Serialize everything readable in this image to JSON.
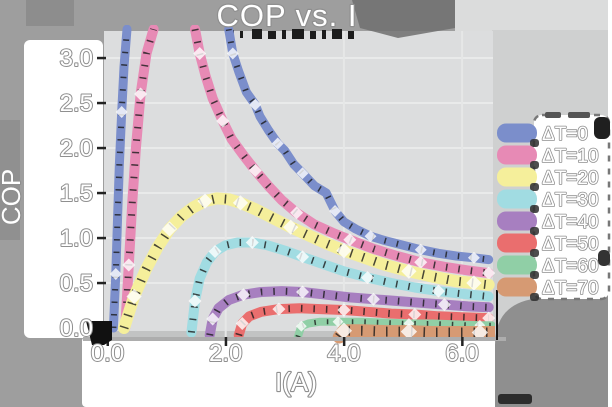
{
  "figure": {
    "title": "COP vs. I",
    "x_axis_label": "I(A)",
    "y_axis_label": "COP"
  },
  "chart_data": {
    "type": "line",
    "title": "COP vs. I",
    "xlabel": "I(A)",
    "ylabel": "COP",
    "xlim": [
      -0.05,
      6.55
    ],
    "ylim": [
      -0.12,
      3.35
    ],
    "grid": true,
    "legend_position": "right",
    "xticks": {
      "values": [
        0,
        2,
        4,
        6
      ],
      "labels": [
        "0.0",
        "2.0",
        "4.0",
        "6.0"
      ]
    },
    "yticks": {
      "values": [
        0,
        0.5,
        1,
        1.5,
        2,
        2.5,
        3
      ],
      "labels": [
        "0.0",
        "0.5",
        "1.0",
        "1.5",
        "2.0",
        "2.5",
        "3.0"
      ]
    },
    "gridx": [
      2,
      4,
      6
    ],
    "gridy": [
      0.5,
      1,
      1.5,
      2,
      2.5,
      3
    ],
    "note": "COP curves with error bands; ΔT=0 and ΔT=10 exceed the top of the axes between their rising and falling branches",
    "series": [
      {
        "name": "ΔT=0",
        "color": "#7b8ecb",
        "band_width": 9,
        "segments": [
          [
            [
              0.1,
              0.0
            ],
            [
              0.14,
              0.6
            ],
            [
              0.17,
              1.2
            ],
            [
              0.2,
              1.8
            ],
            [
              0.24,
              2.4
            ],
            [
              0.28,
              2.9
            ],
            [
              0.33,
              3.32
            ]
          ],
          [
            [
              2.05,
              3.32
            ],
            [
              2.12,
              3.05
            ],
            [
              2.22,
              2.85
            ],
            [
              2.35,
              2.62
            ],
            [
              2.5,
              2.48
            ],
            [
              2.58,
              2.35
            ],
            [
              2.72,
              2.2
            ],
            [
              2.88,
              2.05
            ],
            [
              3.0,
              1.97
            ],
            [
              3.15,
              1.82
            ],
            [
              3.3,
              1.72
            ],
            [
              3.5,
              1.58
            ],
            [
              3.7,
              1.5
            ],
            [
              3.85,
              1.3
            ],
            [
              4.0,
              1.18
            ],
            [
              4.2,
              1.1
            ],
            [
              4.45,
              1.02
            ],
            [
              4.7,
              0.97
            ],
            [
              5.0,
              0.92
            ],
            [
              5.3,
              0.87
            ],
            [
              5.6,
              0.83
            ],
            [
              5.9,
              0.8
            ],
            [
              6.2,
              0.78
            ],
            [
              6.45,
              0.76
            ]
          ]
        ]
      },
      {
        "name": "ΔT=10",
        "color": "#e78ab5",
        "band_width": 10,
        "segments": [
          [
            [
              0.3,
              0.0
            ],
            [
              0.36,
              0.7
            ],
            [
              0.42,
              1.4
            ],
            [
              0.48,
              2.0
            ],
            [
              0.56,
              2.6
            ],
            [
              0.66,
              3.05
            ],
            [
              0.78,
              3.32
            ]
          ],
          [
            [
              1.48,
              3.32
            ],
            [
              1.56,
              3.05
            ],
            [
              1.66,
              2.8
            ],
            [
              1.78,
              2.55
            ],
            [
              1.95,
              2.3
            ],
            [
              2.1,
              2.1
            ],
            [
              2.3,
              1.92
            ],
            [
              2.5,
              1.75
            ],
            [
              2.72,
              1.58
            ],
            [
              2.95,
              1.42
            ],
            [
              3.2,
              1.28
            ],
            [
              3.5,
              1.15
            ],
            [
              3.8,
              1.06
            ],
            [
              4.1,
              0.98
            ],
            [
              4.5,
              0.88
            ],
            [
              4.9,
              0.8
            ],
            [
              5.3,
              0.73
            ],
            [
              5.7,
              0.68
            ],
            [
              6.1,
              0.64
            ],
            [
              6.45,
              0.61
            ]
          ]
        ]
      },
      {
        "name": "ΔT=20",
        "color": "#f5ef9b",
        "band_width": 12,
        "segments": [
          [
            [
              0.28,
              0.0
            ],
            [
              0.45,
              0.35
            ],
            [
              0.65,
              0.65
            ],
            [
              0.85,
              0.9
            ],
            [
              1.05,
              1.1
            ],
            [
              1.25,
              1.24
            ],
            [
              1.45,
              1.34
            ],
            [
              1.65,
              1.41
            ],
            [
              1.85,
              1.44
            ],
            [
              2.05,
              1.43
            ],
            [
              2.25,
              1.39
            ],
            [
              2.5,
              1.32
            ],
            [
              2.8,
              1.22
            ],
            [
              3.1,
              1.12
            ],
            [
              3.4,
              1.03
            ],
            [
              3.7,
              0.94
            ],
            [
              4.0,
              0.86
            ],
            [
              4.35,
              0.78
            ],
            [
              4.7,
              0.7
            ],
            [
              5.1,
              0.63
            ],
            [
              5.5,
              0.57
            ],
            [
              5.9,
              0.52
            ],
            [
              6.2,
              0.5
            ],
            [
              6.45,
              0.48
            ]
          ]
        ]
      },
      {
        "name": "ΔT=30",
        "color": "#a1dce2",
        "band_width": 10,
        "segments": [
          [
            [
              1.42,
              -0.05
            ],
            [
              1.48,
              0.3
            ],
            [
              1.56,
              0.55
            ],
            [
              1.68,
              0.73
            ],
            [
              1.82,
              0.85
            ],
            [
              2.0,
              0.92
            ],
            [
              2.2,
              0.95
            ],
            [
              2.45,
              0.95
            ],
            [
              2.7,
              0.92
            ],
            [
              3.0,
              0.86
            ],
            [
              3.3,
              0.79
            ],
            [
              3.65,
              0.71
            ],
            [
              4.0,
              0.63
            ],
            [
              4.4,
              0.56
            ],
            [
              4.8,
              0.5
            ],
            [
              5.2,
              0.45
            ],
            [
              5.6,
              0.41
            ],
            [
              6.0,
              0.38
            ],
            [
              6.45,
              0.35
            ]
          ]
        ]
      },
      {
        "name": "ΔT=40",
        "color": "#a77fc0",
        "band_width": 10,
        "segments": [
          [
            [
              1.73,
              -0.08
            ],
            [
              1.78,
              0.1
            ],
            [
              1.88,
              0.22
            ],
            [
              2.05,
              0.31
            ],
            [
              2.3,
              0.37
            ],
            [
              2.6,
              0.4
            ],
            [
              2.95,
              0.41
            ],
            [
              3.3,
              0.4
            ],
            [
              3.7,
              0.37
            ],
            [
              4.1,
              0.34
            ],
            [
              4.5,
              0.32
            ],
            [
              4.9,
              0.3
            ],
            [
              5.3,
              0.28
            ],
            [
              5.7,
              0.26
            ],
            [
              6.1,
              0.24
            ],
            [
              6.45,
              0.23
            ]
          ]
        ]
      },
      {
        "name": "ΔT=50",
        "color": "#ea6e6e",
        "band_width": 10,
        "segments": [
          [
            [
              2.22,
              -0.08
            ],
            [
              2.28,
              0.05
            ],
            [
              2.4,
              0.13
            ],
            [
              2.6,
              0.18
            ],
            [
              2.9,
              0.21
            ],
            [
              3.25,
              0.22
            ],
            [
              3.6,
              0.21
            ],
            [
              4.0,
              0.2
            ],
            [
              4.4,
              0.18
            ],
            [
              4.8,
              0.16
            ],
            [
              5.2,
              0.15
            ],
            [
              5.6,
              0.13
            ],
            [
              6.0,
              0.12
            ],
            [
              6.45,
              0.11
            ]
          ]
        ]
      },
      {
        "name": "ΔT=60",
        "color": "#90cfa6",
        "band_width": 8,
        "segments": [
          [
            [
              3.22,
              -0.1
            ],
            [
              3.28,
              0.02
            ],
            [
              3.4,
              0.05
            ],
            [
              3.6,
              0.07
            ],
            [
              3.9,
              0.07
            ],
            [
              4.3,
              0.07
            ],
            [
              4.7,
              0.06
            ],
            [
              5.1,
              0.05
            ],
            [
              5.5,
              0.05
            ],
            [
              5.9,
              0.04
            ],
            [
              6.3,
              0.03
            ],
            [
              6.5,
              0.03
            ]
          ]
        ]
      },
      {
        "name": "ΔT=70",
        "color": "#d69a73",
        "band_width": 13,
        "segments": [
          [
            [
              3.92,
              -0.1
            ],
            [
              4.0,
              -0.03
            ],
            [
              4.3,
              -0.03
            ],
            [
              4.7,
              -0.04
            ],
            [
              5.1,
              -0.04
            ],
            [
              5.5,
              -0.05
            ],
            [
              5.9,
              -0.05
            ],
            [
              6.3,
              -0.05
            ],
            [
              6.55,
              -0.05
            ]
          ]
        ]
      }
    ],
    "legend": [
      "ΔT=0",
      "ΔT=10",
      "ΔT=20",
      "ΔT=30",
      "ΔT=40",
      "ΔT=50",
      "ΔT=60",
      "ΔT=70"
    ]
  },
  "colors": {
    "figure_bg": "#9e9e9e",
    "plot_bg": "#dcddde",
    "grid": "#e9eaea",
    "text_fill": "#ffffff",
    "text_outline": "#8f8f8f",
    "legend_bg": "#ffffff",
    "artifact_dark": "#1c1c1c"
  }
}
